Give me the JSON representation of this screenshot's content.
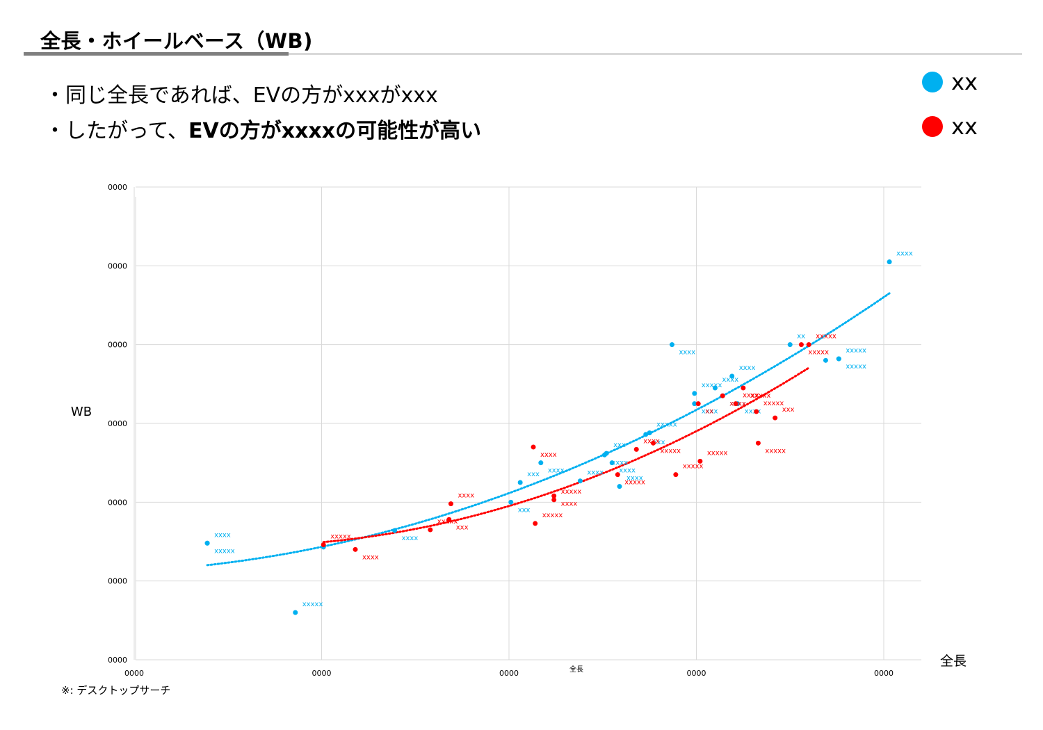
{
  "header": {
    "title": "全長・ホイールベース（WB)",
    "bullet1": "・同じ全長であれば、EVの方がxxxがxxx",
    "bullet2_normal": "・したがって、",
    "bullet2_bold": "EVの方がxxxxの可能性が高い"
  },
  "legend": [
    {
      "label": "xx",
      "color": "#00b0f0"
    },
    {
      "label": "xx",
      "color": "#ff0000"
    }
  ],
  "footnote": "※: デスクトップサーチ",
  "colors": {
    "blue": "#00b0f0",
    "red": "#ff0000",
    "grid": "#d9d9d9"
  },
  "chart_data": {
    "type": "scatter",
    "xlabel": "全長",
    "xlabel_small": "全長",
    "ylabel": "WB",
    "xlim": [
      0,
      4
    ],
    "ylim": [
      0,
      6
    ],
    "x_tick_labels": [
      "0000",
      "0000",
      "0000",
      "0000",
      "0000"
    ],
    "y_tick_labels": [
      "0000",
      "0000",
      "0000",
      "0000",
      "0000",
      "0000",
      "0000"
    ],
    "grid": true,
    "series": [
      {
        "name": "xx",
        "color": "#00b0f0",
        "trendline": "polynomial",
        "points": [
          {
            "x": 0.39,
            "y": 1.48,
            "label": "xxxx"
          },
          {
            "x": 0.39,
            "y": 1.48,
            "label": "xxxxx"
          },
          {
            "x": 0.86,
            "y": 0.6,
            "label": "xxxxx"
          },
          {
            "x": 1.39,
            "y": 1.64,
            "label": "xxxx"
          },
          {
            "x": 1.01,
            "y": 1.43,
            "label": ""
          },
          {
            "x": 2.01,
            "y": 2.0,
            "label": "xxx"
          },
          {
            "x": 2.06,
            "y": 2.25,
            "label": "xxx"
          },
          {
            "x": 2.17,
            "y": 2.5,
            "label": "xxxx"
          },
          {
            "x": 2.38,
            "y": 2.27,
            "label": "xxxx"
          },
          {
            "x": 2.51,
            "y": 2.6,
            "label": "xxxx"
          },
          {
            "x": 2.52,
            "y": 2.62,
            "label": "xxx"
          },
          {
            "x": 2.55,
            "y": 2.5,
            "label": "xxxx"
          },
          {
            "x": 2.59,
            "y": 2.2,
            "label": "xxxx"
          },
          {
            "x": 2.73,
            "y": 2.86,
            "label": "xxx"
          },
          {
            "x": 2.75,
            "y": 2.88,
            "label": "xxxxx"
          },
          {
            "x": 2.87,
            "y": 4.0,
            "label": "xxxx"
          },
          {
            "x": 2.99,
            "y": 3.38,
            "label": "xxxxx"
          },
          {
            "x": 2.99,
            "y": 3.25,
            "label": "xxxx"
          },
          {
            "x": 3.1,
            "y": 3.45,
            "label": "xxxx"
          },
          {
            "x": 3.14,
            "y": 3.35,
            "label": "xxxx"
          },
          {
            "x": 3.19,
            "y": 3.6,
            "label": "xxxx"
          },
          {
            "x": 3.22,
            "y": 3.25,
            "label": "xxxx"
          },
          {
            "x": 3.5,
            "y": 4.0,
            "label": "xx"
          },
          {
            "x": 3.69,
            "y": 3.8,
            "label": ""
          },
          {
            "x": 3.76,
            "y": 3.82,
            "label": "xxxxx"
          },
          {
            "x": 3.76,
            "y": 3.82,
            "label": "xxxxx"
          },
          {
            "x": 4.03,
            "y": 5.05,
            "label": "xxxx"
          }
        ]
      },
      {
        "name": "xx",
        "color": "#ff0000",
        "trendline": "polynomial",
        "points": [
          {
            "x": 1.01,
            "y": 1.46,
            "label": "xxxxx"
          },
          {
            "x": 1.18,
            "y": 1.4,
            "label": "xxxx"
          },
          {
            "x": 1.58,
            "y": 1.65,
            "label": "xxxxx"
          },
          {
            "x": 1.68,
            "y": 1.78,
            "label": "xxx"
          },
          {
            "x": 1.69,
            "y": 1.98,
            "label": "xxxx"
          },
          {
            "x": 2.13,
            "y": 2.7,
            "label": "xxxx"
          },
          {
            "x": 2.14,
            "y": 1.73,
            "label": "xxxxx"
          },
          {
            "x": 2.24,
            "y": 2.08,
            "label": "xxxx"
          },
          {
            "x": 2.24,
            "y": 2.03,
            "label": "xxxxx"
          },
          {
            "x": 2.58,
            "y": 2.35,
            "label": "xxxxx"
          },
          {
            "x": 2.68,
            "y": 2.67,
            "label": "xxxx"
          },
          {
            "x": 2.77,
            "y": 2.75,
            "label": "xxxxx"
          },
          {
            "x": 2.89,
            "y": 2.35,
            "label": "xxxxx"
          },
          {
            "x": 3.01,
            "y": 3.25,
            "label": "xx"
          },
          {
            "x": 3.02,
            "y": 2.52,
            "label": "xxxxx"
          },
          {
            "x": 3.14,
            "y": 3.35,
            "label": "xxxx"
          },
          {
            "x": 3.21,
            "y": 3.25,
            "label": "xxxx"
          },
          {
            "x": 3.25,
            "y": 3.45,
            "label": "xxxxx"
          },
          {
            "x": 3.32,
            "y": 3.15,
            "label": "xxxxx"
          },
          {
            "x": 3.33,
            "y": 2.75,
            "label": "xxxxx"
          },
          {
            "x": 3.42,
            "y": 3.07,
            "label": "xxx"
          },
          {
            "x": 3.56,
            "y": 4.0,
            "label": "xxxxx"
          },
          {
            "x": 3.6,
            "y": 4.0,
            "label": "xxxxx"
          }
        ]
      }
    ]
  }
}
